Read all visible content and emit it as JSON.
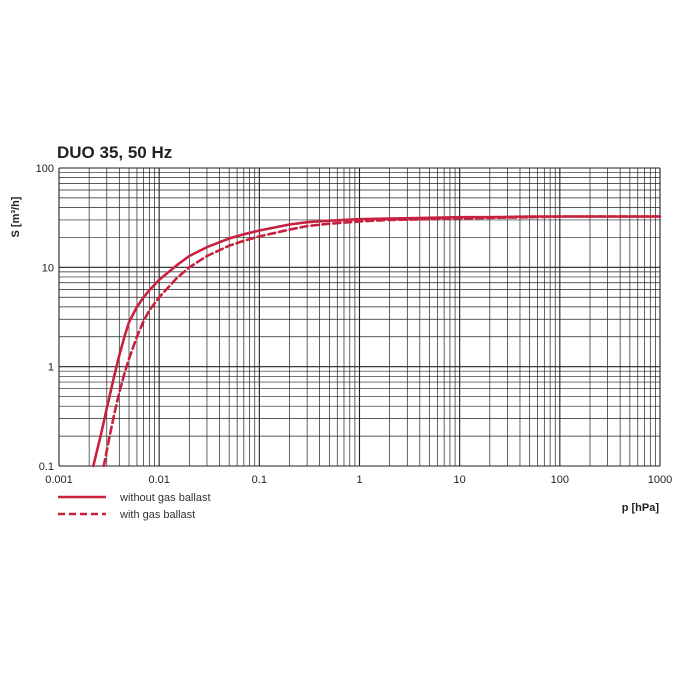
{
  "chart_data": {
    "type": "line",
    "title": "DUO 35, 50 Hz",
    "xlabel": "p [hPa]",
    "ylabel": "S [m³/h]",
    "xscale": "log",
    "yscale": "log",
    "xlim": [
      0.001,
      1000
    ],
    "ylim": [
      0.1,
      100
    ],
    "grid": true,
    "legend_position": "bottom-left",
    "x_ticks": [
      "0.001",
      "0.01",
      "0.1",
      "1",
      "10",
      "100",
      "1000"
    ],
    "y_ticks": [
      "0.1",
      "1",
      "10",
      "100"
    ],
    "colors": {
      "series": "#c8213f",
      "grid": "#222222"
    },
    "series": [
      {
        "name": "without gas ballast",
        "line_style": "solid",
        "x": [
          0.0022,
          0.0026,
          0.003,
          0.0035,
          0.004,
          0.0045,
          0.005,
          0.006,
          0.007,
          0.008,
          0.01,
          0.015,
          0.02,
          0.03,
          0.05,
          0.07,
          0.1,
          0.2,
          0.3,
          0.5,
          1,
          2,
          5,
          10,
          20,
          50,
          100,
          200,
          500,
          1000
        ],
        "y": [
          0.1,
          0.2,
          0.38,
          0.75,
          1.3,
          2.0,
          2.8,
          4.0,
          5.0,
          5.9,
          7.5,
          10.5,
          13,
          16,
          19.5,
          21.5,
          23.5,
          27,
          28.5,
          29.5,
          30.5,
          31,
          31.5,
          32,
          32,
          32.5,
          32.5,
          32.5,
          32.5,
          32.5
        ]
      },
      {
        "name": "with gas ballast",
        "line_style": "dashed",
        "x": [
          0.0028,
          0.0032,
          0.0036,
          0.004,
          0.0045,
          0.005,
          0.006,
          0.007,
          0.008,
          0.01,
          0.015,
          0.02,
          0.03,
          0.05,
          0.07,
          0.1,
          0.2,
          0.3,
          0.5,
          1,
          2,
          5,
          10,
          20,
          50,
          100,
          200,
          500,
          1000
        ],
        "y": [
          0.1,
          0.2,
          0.35,
          0.55,
          0.85,
          1.2,
          2.0,
          2.9,
          3.7,
          5.0,
          7.8,
          10,
          13,
          16.5,
          18.5,
          20.5,
          24,
          26,
          27.5,
          29,
          30,
          30.5,
          31,
          31.5,
          32,
          32.5,
          32.5,
          32.5,
          32.5
        ]
      }
    ]
  }
}
